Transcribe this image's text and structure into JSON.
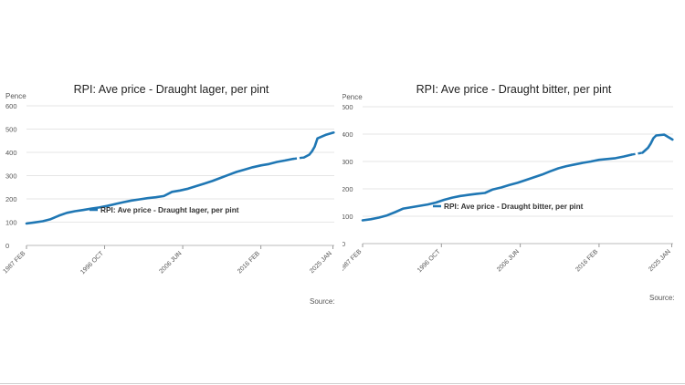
{
  "chart_data": [
    {
      "type": "line",
      "title": "RPI: Ave price - Draught lager, per pint",
      "ylabel": "Pence",
      "xlabel": "",
      "ylim": [
        0,
        600
      ],
      "yticks": [
        0,
        100,
        200,
        300,
        400,
        500,
        600
      ],
      "xlim": [
        "1987-02",
        "2025-03"
      ],
      "xticks": [
        {
          "label": "1987 FEB",
          "date": "1987-02"
        },
        {
          "label": "1996 OCT",
          "date": "1996-10"
        },
        {
          "label": "2006 JUN",
          "date": "2006-06"
        },
        {
          "label": "2016 FEB",
          "date": "2016-02"
        },
        {
          "label": "2025 JAN",
          "date": "2025-01"
        }
      ],
      "grid": true,
      "legend_position": "bottom",
      "color": "#1f77b4",
      "series": [
        {
          "name": "RPI: Ave price - Draught lager, per pint",
          "x": [
            "1987-02",
            "1988-02",
            "1989-02",
            "1990-02",
            "1991-02",
            "1992-02",
            "1993-02",
            "1994-02",
            "1995-02",
            "1996-02",
            "1997-02",
            "1998-02",
            "1999-02",
            "2000-02",
            "2001-02",
            "2002-02",
            "2003-02",
            "2004-02",
            "2005-02",
            "2006-02",
            "2007-02",
            "2008-02",
            "2009-02",
            "2010-02",
            "2011-02",
            "2012-02",
            "2013-02",
            "2014-02",
            "2015-02",
            "2016-02",
            "2017-02",
            "2018-02",
            "2019-02",
            "2020-02",
            "2021-06",
            "2022-02",
            "2022-06",
            "2022-10",
            "2023-02",
            "2024-02",
            "2025-02"
          ],
          "values": [
            94,
            99,
            104,
            113,
            128,
            140,
            147,
            152,
            158,
            163,
            170,
            178,
            186,
            193,
            198,
            203,
            207,
            212,
            230,
            236,
            244,
            255,
            266,
            277,
            290,
            303,
            316,
            326,
            336,
            344,
            350,
            359,
            365,
            372,
            378,
            390,
            405,
            425,
            460,
            475,
            485
          ],
          "gaps": [
            [
              "2020-03",
              "2021-05"
            ]
          ]
        }
      ],
      "source_label": "Source:"
    },
    {
      "type": "line",
      "title": "RPI: Ave price - Draught bitter, per pint",
      "ylabel": "Pence",
      "xlabel": "",
      "ylim": [
        0,
        500
      ],
      "yticks": [
        0,
        100,
        200,
        300,
        400,
        500
      ],
      "xlim": [
        "1987-02",
        "2025-03"
      ],
      "xticks": [
        {
          "label": "1987 FEB",
          "date": "1987-02"
        },
        {
          "label": "1996 OCT",
          "date": "1996-10"
        },
        {
          "label": "2006 JUN",
          "date": "2006-06"
        },
        {
          "label": "2016 FEB",
          "date": "2016-02"
        },
        {
          "label": "2025 JAN",
          "date": "2025-01"
        }
      ],
      "grid": true,
      "legend_position": "bottom",
      "color": "#1f77b4",
      "series": [
        {
          "name": "RPI: Ave price - Draught bitter, per pint",
          "x": [
            "1987-02",
            "1988-02",
            "1989-02",
            "1990-02",
            "1991-02",
            "1992-02",
            "1993-02",
            "1994-02",
            "1995-02",
            "1996-02",
            "1997-02",
            "1998-02",
            "1999-02",
            "2000-02",
            "2001-02",
            "2002-02",
            "2003-02",
            "2004-02",
            "2005-02",
            "2006-02",
            "2007-02",
            "2008-02",
            "2009-02",
            "2010-02",
            "2011-02",
            "2012-02",
            "2013-02",
            "2014-02",
            "2015-02",
            "2016-02",
            "2017-02",
            "2018-02",
            "2019-02",
            "2020-02",
            "2021-06",
            "2022-02",
            "2022-06",
            "2022-10",
            "2023-02",
            "2024-02",
            "2025-02"
          ],
          "values": [
            85,
            89,
            95,
            103,
            115,
            128,
            133,
            138,
            143,
            150,
            160,
            168,
            174,
            178,
            182,
            185,
            198,
            205,
            214,
            222,
            232,
            242,
            252,
            264,
            275,
            283,
            289,
            295,
            300,
            306,
            309,
            312,
            318,
            325,
            332,
            350,
            365,
            385,
            395,
            398,
            380
          ],
          "gaps": [
            [
              "2020-03",
              "2021-05"
            ]
          ]
        }
      ],
      "source_label": "Source:"
    }
  ]
}
